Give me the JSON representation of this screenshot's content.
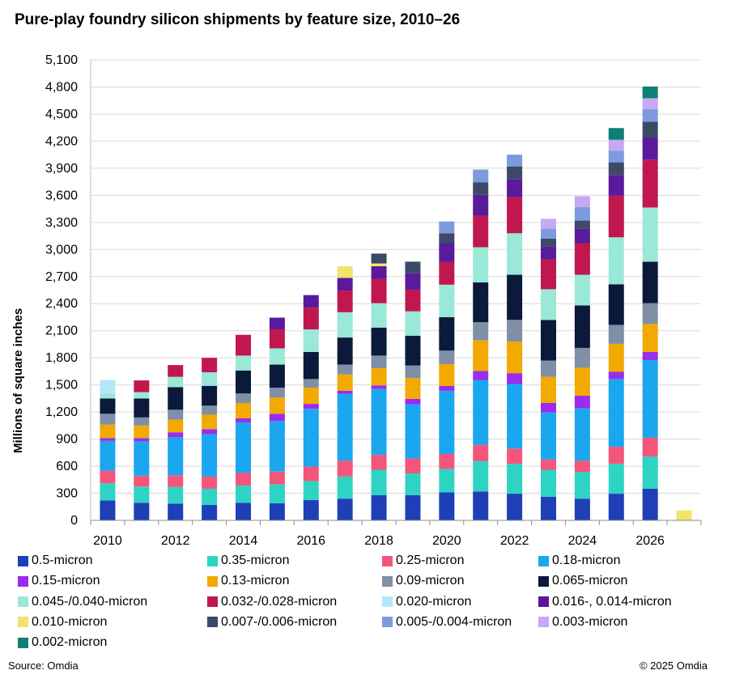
{
  "chart_data": {
    "type": "bar",
    "stacked": true,
    "title": "Pure-play foundry silicon shipments by feature size, 2010–26",
    "ylabel": "Millions of square inches",
    "xlabel": "",
    "ylim": [
      0,
      5100
    ],
    "yticks": [
      "0",
      "300",
      "600",
      "900",
      "1,200",
      "1,500",
      "1,800",
      "2,100",
      "2,400",
      "2,700",
      "3,000",
      "3,300",
      "3,600",
      "3,900",
      "4,200",
      "4,500",
      "4,800",
      "5,100"
    ],
    "ytick_values": [
      0,
      300,
      600,
      900,
      1200,
      1500,
      1800,
      2100,
      2400,
      2700,
      3000,
      3300,
      3600,
      3900,
      4200,
      4500,
      4800,
      5100
    ],
    "categories": [
      "2010",
      "2011",
      "2012",
      "2013",
      "2014",
      "2015",
      "2016",
      "2017",
      "2018",
      "2019",
      "2020",
      "2021",
      "2022",
      "2023",
      "2024",
      "2025",
      "2026",
      "2027"
    ],
    "xtick_labels": [
      "2010",
      "",
      "2012",
      "",
      "2014",
      "",
      "2016",
      "",
      "2018",
      "",
      "2020",
      "",
      "2022",
      "",
      "2024",
      "",
      "2026",
      ""
    ],
    "grid": true,
    "legend_position": "bottom",
    "series": [
      {
        "name": "0.5-micron",
        "color": "#1f3fb7",
        "values": [
          220,
          195,
          185,
          170,
          195,
          190,
          225,
          240,
          280,
          280,
          310,
          320,
          295,
          260,
          240,
          295,
          350,
          0
        ]
      },
      {
        "name": "0.35-micron",
        "color": "#2dd4c4",
        "values": [
          190,
          180,
          185,
          180,
          190,
          210,
          210,
          245,
          280,
          240,
          260,
          335,
          330,
          300,
          295,
          330,
          355,
          0
        ]
      },
      {
        "name": "0.25-micron",
        "color": "#f4557a",
        "values": [
          140,
          120,
          130,
          135,
          140,
          140,
          160,
          175,
          165,
          165,
          165,
          180,
          170,
          115,
          125,
          190,
          210,
          0
        ]
      },
      {
        "name": "0.18-micron",
        "color": "#1aa7f0",
        "values": [
          330,
          380,
          420,
          470,
          560,
          560,
          640,
          740,
          730,
          600,
          700,
          720,
          715,
          520,
          580,
          750,
          860,
          0
        ]
      },
      {
        "name": "0.15-micron",
        "color": "#9b2bf0",
        "values": [
          30,
          35,
          55,
          55,
          45,
          80,
          55,
          35,
          40,
          60,
          55,
          100,
          120,
          105,
          140,
          80,
          90,
          0
        ]
      },
      {
        "name": "0.13-micron",
        "color": "#f2a900",
        "values": [
          150,
          140,
          140,
          160,
          170,
          180,
          180,
          180,
          190,
          230,
          240,
          340,
          350,
          290,
          310,
          310,
          310,
          0
        ]
      },
      {
        "name": "0.09-micron",
        "color": "#7f8fa6",
        "values": [
          120,
          90,
          110,
          100,
          105,
          110,
          95,
          110,
          140,
          140,
          150,
          200,
          240,
          180,
          220,
          210,
          230,
          0
        ]
      },
      {
        "name": "0.065-micron",
        "color": "#0b1a3a",
        "values": [
          170,
          210,
          250,
          220,
          255,
          255,
          300,
          300,
          310,
          330,
          370,
          440,
          500,
          450,
          470,
          450,
          460,
          0
        ]
      },
      {
        "name": "0.045-/0.040-micron",
        "color": "#9ae8d8",
        "values": [
          55,
          70,
          115,
          150,
          165,
          180,
          250,
          280,
          270,
          270,
          360,
          390,
          460,
          340,
          340,
          520,
          600,
          0
        ]
      },
      {
        "name": "0.032-/0.028-micron",
        "color": "#c0174f",
        "values": [
          0,
          130,
          130,
          160,
          230,
          210,
          240,
          240,
          270,
          240,
          250,
          350,
          400,
          330,
          350,
          460,
          530,
          0
        ]
      },
      {
        "name": "0.020-micron",
        "color": "#b3e8fb",
        "values": [
          150,
          0,
          0,
          0,
          0,
          0,
          0,
          0,
          0,
          0,
          0,
          0,
          0,
          0,
          0,
          0,
          0,
          0
        ]
      },
      {
        "name": "0.016-, 0.014-micron",
        "color": "#5a1a9c",
        "values": [
          0,
          0,
          0,
          0,
          0,
          130,
          140,
          140,
          140,
          180,
          210,
          230,
          200,
          140,
          160,
          230,
          240,
          0
        ]
      },
      {
        "name": "0.010-micron",
        "color": "#f0e46a",
        "values": [
          0,
          0,
          0,
          0,
          0,
          0,
          0,
          130,
          30,
          0,
          0,
          0,
          0,
          0,
          0,
          0,
          0,
          110
        ]
      },
      {
        "name": "0.007-/0.006-micron",
        "color": "#3c4a68",
        "values": [
          0,
          0,
          0,
          0,
          0,
          0,
          0,
          0,
          110,
          130,
          110,
          140,
          140,
          90,
          90,
          140,
          180,
          0
        ]
      },
      {
        "name": "0.005-/0.004-micron",
        "color": "#7d9ae0",
        "values": [
          0,
          0,
          0,
          0,
          0,
          0,
          0,
          0,
          0,
          0,
          130,
          140,
          130,
          110,
          150,
          130,
          140,
          0
        ]
      },
      {
        "name": "0.003-micron",
        "color": "#c7a8f5",
        "values": [
          0,
          0,
          0,
          0,
          0,
          0,
          0,
          0,
          0,
          0,
          0,
          0,
          0,
          110,
          120,
          120,
          120,
          0
        ]
      },
      {
        "name": "0.002-micron",
        "color": "#0f7f74",
        "values": [
          0,
          0,
          0,
          0,
          0,
          0,
          0,
          0,
          0,
          0,
          0,
          0,
          0,
          0,
          0,
          130,
          130,
          0
        ]
      }
    ]
  },
  "footer": {
    "source": "Source: Omdia",
    "copyright": "© 2025 Omdia"
  }
}
